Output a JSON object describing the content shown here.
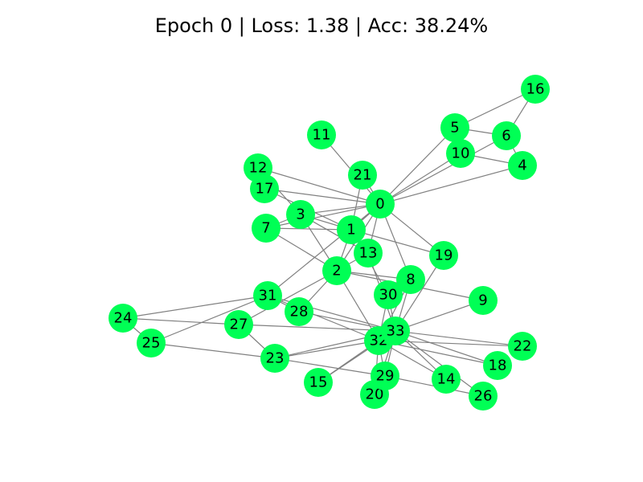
{
  "title": "Epoch 0 | Loss: 1.38 | Acc: 38.24%",
  "style": {
    "node_color": "#00ff55",
    "edge_color": "#808080",
    "background": "#ffffff"
  },
  "nodes": [
    "0",
    "1",
    "2",
    "3",
    "4",
    "5",
    "6",
    "7",
    "8",
    "9",
    "10",
    "11",
    "12",
    "13",
    "14",
    "15",
    "16",
    "17",
    "18",
    "19",
    "20",
    "21",
    "22",
    "23",
    "24",
    "25",
    "26",
    "27",
    "28",
    "29",
    "30",
    "31",
    "32",
    "33"
  ],
  "edges": [
    [
      0,
      1
    ],
    [
      0,
      2
    ],
    [
      0,
      3
    ],
    [
      0,
      4
    ],
    [
      0,
      5
    ],
    [
      0,
      6
    ],
    [
      0,
      7
    ],
    [
      0,
      8
    ],
    [
      0,
      10
    ],
    [
      0,
      11
    ],
    [
      0,
      12
    ],
    [
      0,
      13
    ],
    [
      0,
      17
    ],
    [
      0,
      19
    ],
    [
      0,
      21
    ],
    [
      0,
      31
    ],
    [
      1,
      2
    ],
    [
      1,
      3
    ],
    [
      1,
      7
    ],
    [
      1,
      13
    ],
    [
      1,
      17
    ],
    [
      1,
      19
    ],
    [
      1,
      21
    ],
    [
      1,
      30
    ],
    [
      2,
      3
    ],
    [
      2,
      7
    ],
    [
      2,
      8
    ],
    [
      2,
      9
    ],
    [
      2,
      13
    ],
    [
      2,
      27
    ],
    [
      2,
      28
    ],
    [
      2,
      32
    ],
    [
      3,
      7
    ],
    [
      3,
      12
    ],
    [
      3,
      13
    ],
    [
      4,
      6
    ],
    [
      4,
      10
    ],
    [
      5,
      6
    ],
    [
      5,
      10
    ],
    [
      5,
      16
    ],
    [
      6,
      16
    ],
    [
      8,
      30
    ],
    [
      8,
      32
    ],
    [
      8,
      33
    ],
    [
      9,
      33
    ],
    [
      13,
      33
    ],
    [
      14,
      32
    ],
    [
      14,
      33
    ],
    [
      15,
      32
    ],
    [
      15,
      33
    ],
    [
      18,
      32
    ],
    [
      18,
      33
    ],
    [
      19,
      33
    ],
    [
      20,
      32
    ],
    [
      20,
      33
    ],
    [
      22,
      32
    ],
    [
      22,
      33
    ],
    [
      23,
      25
    ],
    [
      23,
      27
    ],
    [
      23,
      29
    ],
    [
      23,
      32
    ],
    [
      23,
      33
    ],
    [
      24,
      25
    ],
    [
      24,
      27
    ],
    [
      24,
      31
    ],
    [
      25,
      31
    ],
    [
      26,
      29
    ],
    [
      26,
      33
    ],
    [
      27,
      33
    ],
    [
      28,
      31
    ],
    [
      28,
      33
    ],
    [
      29,
      32
    ],
    [
      29,
      33
    ],
    [
      30,
      32
    ],
    [
      30,
      33
    ],
    [
      31,
      32
    ],
    [
      31,
      33
    ],
    [
      32,
      33
    ]
  ]
}
